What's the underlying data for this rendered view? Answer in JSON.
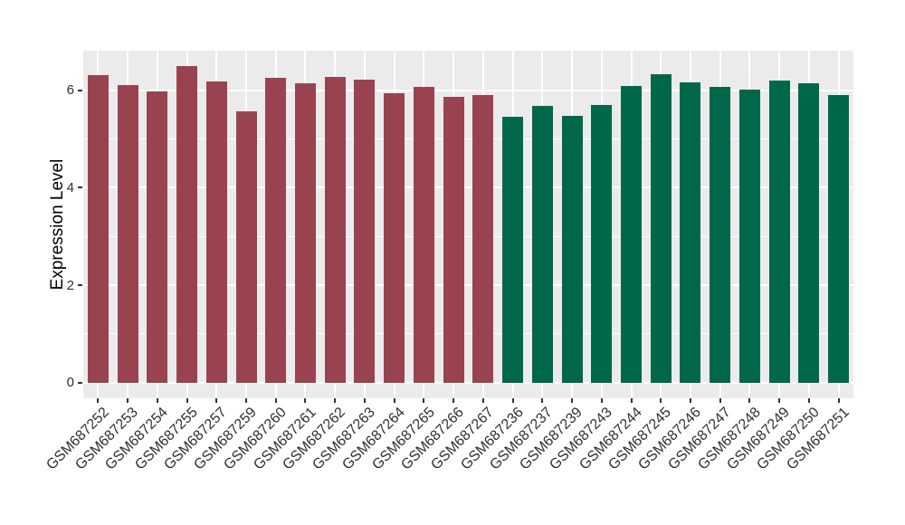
{
  "chart_data": {
    "type": "bar",
    "title": "",
    "xlabel": "",
    "ylabel": "Expression Level",
    "ylim": [
      -0.32,
      6.81
    ],
    "yticks": [
      0,
      2,
      4,
      6
    ],
    "yticks_minor": [
      1,
      3,
      5
    ],
    "grid": "major+minor horizontal, major vertical at category centers",
    "legend_position": "none",
    "panel_bg": "#EBEBEB",
    "gridline_color": "#FFFFFF",
    "group_colors": {
      "group1": "#9A4350",
      "group2": "#00684A"
    },
    "bars": [
      {
        "label": "GSM687252",
        "value": 6.31,
        "group": "group1"
      },
      {
        "label": "GSM687253",
        "value": 6.11,
        "group": "group1"
      },
      {
        "label": "GSM687254",
        "value": 5.98,
        "group": "group1"
      },
      {
        "label": "GSM687255",
        "value": 6.5,
        "group": "group1"
      },
      {
        "label": "GSM687257",
        "value": 6.17,
        "group": "group1"
      },
      {
        "label": "GSM687259",
        "value": 5.57,
        "group": "group1"
      },
      {
        "label": "GSM687260",
        "value": 6.26,
        "group": "group1"
      },
      {
        "label": "GSM687261",
        "value": 6.14,
        "group": "group1"
      },
      {
        "label": "GSM687262",
        "value": 6.27,
        "group": "group1"
      },
      {
        "label": "GSM687263",
        "value": 6.22,
        "group": "group1"
      },
      {
        "label": "GSM687264",
        "value": 5.93,
        "group": "group1"
      },
      {
        "label": "GSM687265",
        "value": 6.07,
        "group": "group1"
      },
      {
        "label": "GSM687266",
        "value": 5.86,
        "group": "group1"
      },
      {
        "label": "GSM687267",
        "value": 5.9,
        "group": "group1"
      },
      {
        "label": "GSM687236",
        "value": 5.45,
        "group": "group2"
      },
      {
        "label": "GSM687237",
        "value": 5.68,
        "group": "group2"
      },
      {
        "label": "GSM687239",
        "value": 5.48,
        "group": "group2"
      },
      {
        "label": "GSM687243",
        "value": 5.7,
        "group": "group2"
      },
      {
        "label": "GSM687244",
        "value": 6.09,
        "group": "group2"
      },
      {
        "label": "GSM687245",
        "value": 6.33,
        "group": "group2"
      },
      {
        "label": "GSM687246",
        "value": 6.16,
        "group": "group2"
      },
      {
        "label": "GSM687247",
        "value": 6.07,
        "group": "group2"
      },
      {
        "label": "GSM687248",
        "value": 6.01,
        "group": "group2"
      },
      {
        "label": "GSM687249",
        "value": 6.19,
        "group": "group2"
      },
      {
        "label": "GSM687250",
        "value": 6.14,
        "group": "group2"
      },
      {
        "label": "GSM687251",
        "value": 5.9,
        "group": "group2"
      }
    ]
  }
}
